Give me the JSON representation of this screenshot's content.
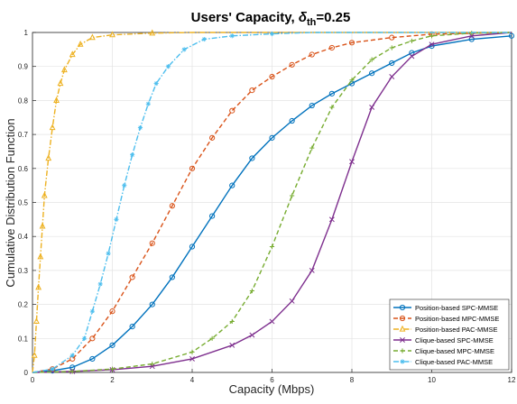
{
  "chart_data": {
    "type": "line",
    "title_main": "Users' Capacity, ",
    "title_symbol": "δ",
    "title_subscript": "th",
    "title_tail": "=0.25",
    "xlabel": "Capacity (Mbps)",
    "ylabel": "Cumulative Distribution Function",
    "xlim": [
      0,
      12
    ],
    "ylim": [
      0,
      1
    ],
    "xticks": [
      0,
      2,
      4,
      6,
      8,
      10,
      12
    ],
    "yticks": [
      0,
      0.1,
      0.2,
      0.3,
      0.4,
      0.5,
      0.6,
      0.7,
      0.8,
      0.9,
      1
    ],
    "grid": true,
    "legend_position": "bottom-right",
    "series": [
      {
        "name": "Position-based SPC-MMSE",
        "color": "#0072BD",
        "dash": "solid",
        "marker": "circle",
        "points": [
          [
            0,
            0
          ],
          [
            0.5,
            0.005
          ],
          [
            1,
            0.015
          ],
          [
            1.5,
            0.04
          ],
          [
            2,
            0.08
          ],
          [
            2.5,
            0.135
          ],
          [
            3,
            0.2
          ],
          [
            3.5,
            0.28
          ],
          [
            4,
            0.37
          ],
          [
            4.5,
            0.46
          ],
          [
            5,
            0.55
          ],
          [
            5.5,
            0.63
          ],
          [
            6,
            0.69
          ],
          [
            6.5,
            0.74
          ],
          [
            7,
            0.785
          ],
          [
            7.5,
            0.82
          ],
          [
            8,
            0.85
          ],
          [
            8.5,
            0.88
          ],
          [
            9,
            0.91
          ],
          [
            9.5,
            0.94
          ],
          [
            10,
            0.96
          ],
          [
            11,
            0.98
          ],
          [
            12,
            0.99
          ]
        ]
      },
      {
        "name": "Position-based MPC-MMSE",
        "color": "#D95319",
        "dash": "dashed",
        "marker": "circle",
        "points": [
          [
            0,
            0
          ],
          [
            0.5,
            0.01
          ],
          [
            1,
            0.04
          ],
          [
            1.5,
            0.1
          ],
          [
            2,
            0.18
          ],
          [
            2.5,
            0.28
          ],
          [
            3,
            0.38
          ],
          [
            3.5,
            0.49
          ],
          [
            4,
            0.6
          ],
          [
            4.5,
            0.69
          ],
          [
            5,
            0.77
          ],
          [
            5.5,
            0.83
          ],
          [
            6,
            0.87
          ],
          [
            6.5,
            0.905
          ],
          [
            7,
            0.935
          ],
          [
            7.5,
            0.955
          ],
          [
            8,
            0.97
          ],
          [
            9,
            0.985
          ],
          [
            10,
            0.995
          ],
          [
            12,
            1
          ]
        ]
      },
      {
        "name": "Position-based PAC-MMSE",
        "color": "#EDB120",
        "dash": "dashdot",
        "marker": "triangle",
        "points": [
          [
            0,
            0
          ],
          [
            0.05,
            0.05
          ],
          [
            0.1,
            0.15
          ],
          [
            0.15,
            0.25
          ],
          [
            0.2,
            0.34
          ],
          [
            0.25,
            0.43
          ],
          [
            0.3,
            0.52
          ],
          [
            0.4,
            0.63
          ],
          [
            0.5,
            0.72
          ],
          [
            0.6,
            0.8
          ],
          [
            0.7,
            0.85
          ],
          [
            0.8,
            0.89
          ],
          [
            1,
            0.935
          ],
          [
            1.2,
            0.965
          ],
          [
            1.5,
            0.985
          ],
          [
            2,
            0.993
          ],
          [
            3,
            0.998
          ],
          [
            4,
            1
          ],
          [
            12,
            1
          ]
        ]
      },
      {
        "name": "Clique-based SPC-MMSE",
        "color": "#7E2F8E",
        "dash": "solid",
        "marker": "x",
        "points": [
          [
            0,
            0
          ],
          [
            1,
            0.003
          ],
          [
            2,
            0.008
          ],
          [
            3,
            0.018
          ],
          [
            4,
            0.04
          ],
          [
            5,
            0.08
          ],
          [
            5.5,
            0.11
          ],
          [
            6,
            0.15
          ],
          [
            6.5,
            0.21
          ],
          [
            7,
            0.3
          ],
          [
            7.5,
            0.45
          ],
          [
            8,
            0.62
          ],
          [
            8.5,
            0.78
          ],
          [
            9,
            0.87
          ],
          [
            9.5,
            0.93
          ],
          [
            10,
            0.965
          ],
          [
            11,
            0.99
          ],
          [
            12,
            1
          ]
        ]
      },
      {
        "name": "Clique-based MPC-MMSE",
        "color": "#77AC30",
        "dash": "dashed",
        "marker": "plus",
        "points": [
          [
            0,
            0
          ],
          [
            1,
            0.003
          ],
          [
            2,
            0.01
          ],
          [
            3,
            0.025
          ],
          [
            4,
            0.06
          ],
          [
            4.5,
            0.1
          ],
          [
            5,
            0.15
          ],
          [
            5.5,
            0.24
          ],
          [
            6,
            0.37
          ],
          [
            6.5,
            0.52
          ],
          [
            7,
            0.66
          ],
          [
            7.5,
            0.78
          ],
          [
            8,
            0.86
          ],
          [
            8.5,
            0.92
          ],
          [
            9,
            0.955
          ],
          [
            9.5,
            0.975
          ],
          [
            10,
            0.99
          ],
          [
            11,
            0.998
          ],
          [
            12,
            1
          ]
        ]
      },
      {
        "name": "Clique-based PAC-MMSE",
        "color": "#4DBEEE",
        "dash": "dashdot",
        "marker": "star",
        "points": [
          [
            0,
            0
          ],
          [
            0.5,
            0.01
          ],
          [
            1,
            0.05
          ],
          [
            1.3,
            0.1
          ],
          [
            1.5,
            0.18
          ],
          [
            1.7,
            0.26
          ],
          [
            1.9,
            0.35
          ],
          [
            2.1,
            0.45
          ],
          [
            2.3,
            0.55
          ],
          [
            2.5,
            0.64
          ],
          [
            2.7,
            0.72
          ],
          [
            2.9,
            0.79
          ],
          [
            3.1,
            0.85
          ],
          [
            3.4,
            0.9
          ],
          [
            3.8,
            0.95
          ],
          [
            4.3,
            0.98
          ],
          [
            5,
            0.99
          ],
          [
            6,
            0.996
          ],
          [
            7,
            1
          ],
          [
            12,
            1
          ]
        ]
      }
    ]
  }
}
